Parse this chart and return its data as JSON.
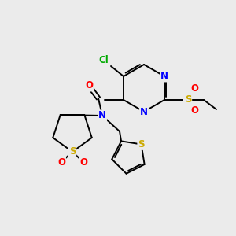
{
  "background_color": "#ebebeb",
  "bond_color": "#000000",
  "atom_colors": {
    "N": "#0000ff",
    "O": "#ff0000",
    "S": "#ccaa00",
    "Cl": "#00aa00",
    "C": "#000000"
  },
  "figsize": [
    3.0,
    3.0
  ],
  "dpi": 100
}
